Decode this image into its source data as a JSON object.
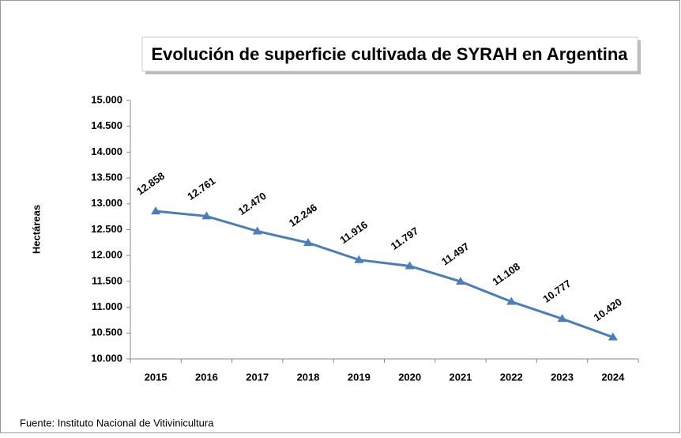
{
  "chart_data": {
    "type": "line",
    "title": "Evolución de superficie cultivada de SYRAH en Argentina",
    "y_label": "Hectáreas",
    "source": "Fuente: Instituto Nacional de Vitivinicultura",
    "categories": [
      "2015",
      "2016",
      "2017",
      "2018",
      "2019",
      "2020",
      "2021",
      "2022",
      "2023",
      "2024"
    ],
    "values": [
      12858,
      12761,
      12470,
      12246,
      11916,
      11797,
      11497,
      11108,
      10777,
      10420
    ],
    "value_labels": [
      "12.858",
      "12.761",
      "12.470",
      "12.246",
      "11.916",
      "11.797",
      "11.497",
      "11.108",
      "10.777",
      "10.420"
    ],
    "color": "#4a7ebb",
    "ylim": [
      10000,
      15000
    ],
    "yticks": [
      {
        "value": 10000,
        "label": "10.000"
      },
      {
        "value": 10500,
        "label": "10.500"
      },
      {
        "value": 11000,
        "label": "11.000"
      },
      {
        "value": 11500,
        "label": "11.500"
      },
      {
        "value": 12000,
        "label": "12.000"
      },
      {
        "value": 12500,
        "label": "12.500"
      },
      {
        "value": 13000,
        "label": "13.000"
      },
      {
        "value": 13500,
        "label": "13.500"
      },
      {
        "value": 14000,
        "label": "14.000"
      },
      {
        "value": 14500,
        "label": "14.500"
      },
      {
        "value": 15000,
        "label": "15.000"
      }
    ],
    "grid": false
  }
}
